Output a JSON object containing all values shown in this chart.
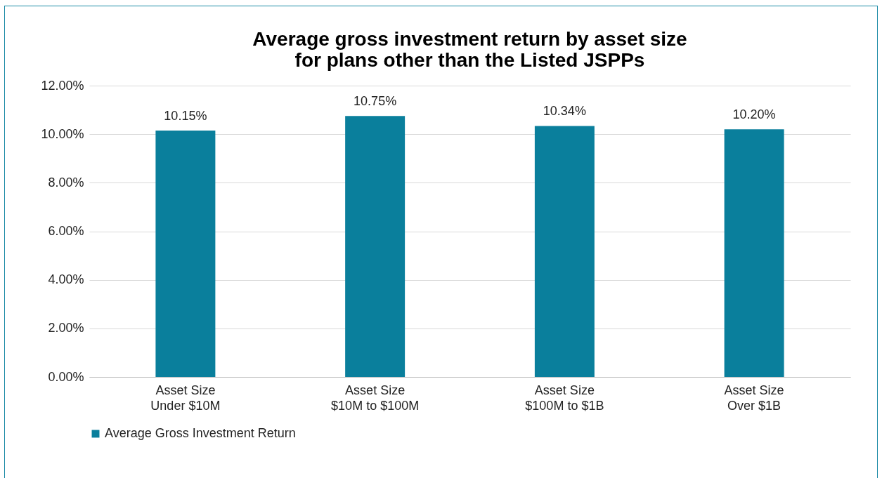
{
  "chart_data": {
    "type": "bar",
    "title": "Average gross investment return by asset size\nfor plans other than the Listed JSPPs",
    "categories": [
      "Asset Size\nUnder $10M",
      "Asset Size\n$10M to $100M",
      "Asset Size\n$100M to $1B",
      "Asset Size\nOver $1B"
    ],
    "series": [
      {
        "name": "Average Gross Investment Return",
        "color": "#0a7f9c",
        "values": [
          10.15,
          10.75,
          10.34,
          10.2
        ],
        "value_labels": [
          "10.15%",
          "10.75%",
          "10.34%",
          "10.20%"
        ]
      }
    ],
    "ylim": [
      0,
      12
    ],
    "yticks": [
      {
        "value": 0,
        "label": "0.00%"
      },
      {
        "value": 2,
        "label": "2.00%"
      },
      {
        "value": 4,
        "label": "4.00%"
      },
      {
        "value": 6,
        "label": "6.00%"
      },
      {
        "value": 8,
        "label": "8.00%"
      },
      {
        "value": 10,
        "label": "10.00%"
      },
      {
        "value": 12,
        "label": "12.00%"
      }
    ],
    "grid": "y",
    "legend": "bottom"
  }
}
